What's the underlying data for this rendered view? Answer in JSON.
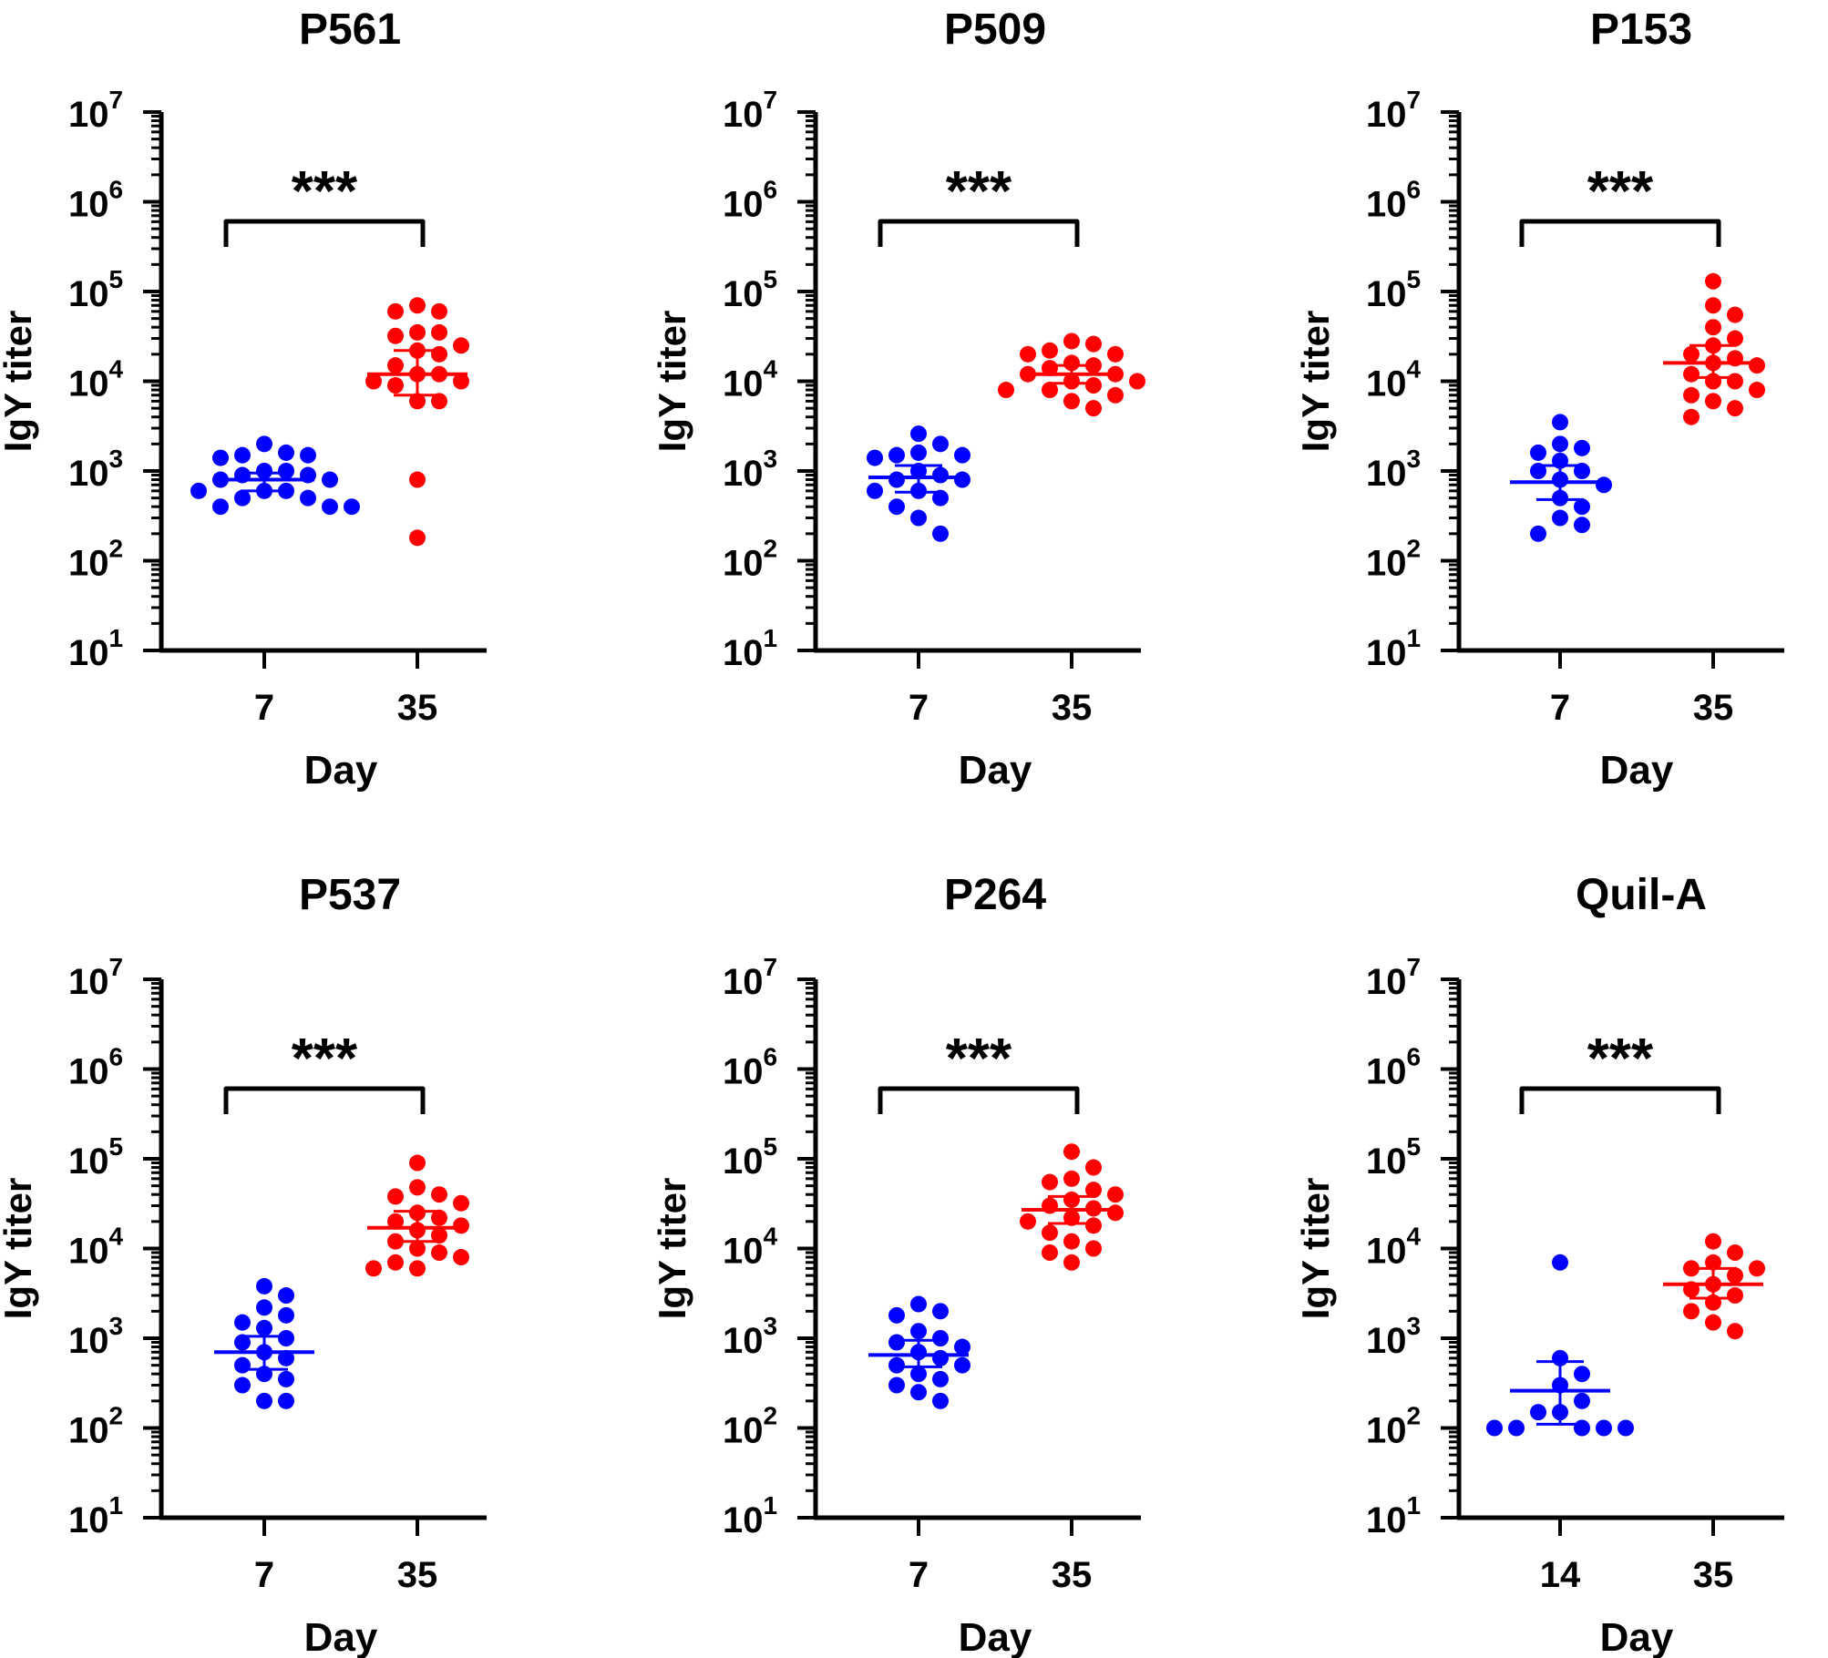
{
  "chart_data": [
    {
      "type": "scatter",
      "title": "P561",
      "xlabel": "Day",
      "ylabel": "IgY titer",
      "yscale": "log",
      "ylim": [
        10,
        10000000
      ],
      "yticks": [
        "10",
        "10",
        "10",
        "10",
        "10",
        "10",
        "10"
      ],
      "ytick_exponents": [
        "1",
        "2",
        "3",
        "4",
        "5",
        "6",
        "7"
      ],
      "categories": [
        "7",
        "35"
      ],
      "significance": "***",
      "series": [
        {
          "name": "7",
          "color": "#0000ff",
          "values": [
            2000,
            1600,
            1500,
            1500,
            1400,
            1000,
            1000,
            900,
            900,
            800,
            800,
            600,
            600,
            600,
            500,
            500,
            400,
            400,
            400
          ],
          "center": 800,
          "err_low": 600,
          "err_high": 950
        },
        {
          "name": "35",
          "color": "#ff0000",
          "values": [
            70000,
            60000,
            60000,
            35000,
            35000,
            32000,
            25000,
            22000,
            20000,
            15000,
            12000,
            12000,
            10000,
            10000,
            9000,
            6000,
            6000,
            800,
            180
          ],
          "center": 12000,
          "err_low": 7000,
          "err_high": 22000
        }
      ]
    },
    {
      "type": "scatter",
      "title": "P509",
      "xlabel": "Day",
      "ylabel": "IgY titer",
      "yscale": "log",
      "ylim": [
        10,
        10000000
      ],
      "yticks": [
        "10",
        "10",
        "10",
        "10",
        "10",
        "10",
        "10"
      ],
      "ytick_exponents": [
        "1",
        "2",
        "3",
        "4",
        "5",
        "6",
        "7"
      ],
      "categories": [
        "7",
        "35"
      ],
      "significance": "***",
      "series": [
        {
          "name": "7",
          "color": "#0000ff",
          "values": [
            2600,
            2000,
            1600,
            1500,
            1500,
            1400,
            1000,
            900,
            800,
            800,
            600,
            600,
            500,
            400,
            300,
            200
          ],
          "center": 850,
          "err_low": 580,
          "err_high": 1150
        },
        {
          "name": "35",
          "color": "#ff0000",
          "values": [
            28000,
            26000,
            22000,
            20000,
            20000,
            16000,
            15000,
            14000,
            12000,
            12000,
            10000,
            10000,
            9000,
            8000,
            8000,
            7000,
            6000,
            5000
          ],
          "center": 12000,
          "err_low": 9500,
          "err_high": 15000
        }
      ]
    },
    {
      "type": "scatter",
      "title": "P153",
      "xlabel": "Day",
      "ylabel": "IgY titer",
      "yscale": "log",
      "ylim": [
        10,
        10000000
      ],
      "yticks": [
        "10",
        "10",
        "10",
        "10",
        "10",
        "10",
        "10"
      ],
      "ytick_exponents": [
        "1",
        "2",
        "3",
        "4",
        "5",
        "6",
        "7"
      ],
      "categories": [
        "7",
        "35"
      ],
      "significance": "***",
      "series": [
        {
          "name": "7",
          "color": "#0000ff",
          "values": [
            3500,
            2000,
            1800,
            1600,
            1300,
            1000,
            1000,
            800,
            700,
            500,
            400,
            300,
            250,
            200
          ],
          "center": 750,
          "err_low": 480,
          "err_high": 1150
        },
        {
          "name": "35",
          "color": "#ff0000",
          "values": [
            130000,
            70000,
            55000,
            40000,
            30000,
            25000,
            20000,
            18000,
            16000,
            15000,
            12000,
            10000,
            10000,
            8000,
            7000,
            6000,
            5000,
            4000
          ],
          "center": 16000,
          "err_low": 11000,
          "err_high": 25000
        }
      ]
    },
    {
      "type": "scatter",
      "title": "P537",
      "xlabel": "Day",
      "ylabel": "IgY titer",
      "yscale": "log",
      "ylim": [
        10,
        10000000
      ],
      "yticks": [
        "10",
        "10",
        "10",
        "10",
        "10",
        "10",
        "10"
      ],
      "ytick_exponents": [
        "1",
        "2",
        "3",
        "4",
        "5",
        "6",
        "7"
      ],
      "categories": [
        "7",
        "35"
      ],
      "significance": "***",
      "series": [
        {
          "name": "7",
          "color": "#0000ff",
          "values": [
            3800,
            3000,
            2200,
            1800,
            1500,
            1300,
            1000,
            900,
            700,
            600,
            500,
            400,
            350,
            300,
            200,
            200
          ],
          "center": 700,
          "err_low": 450,
          "err_high": 1050
        },
        {
          "name": "35",
          "color": "#ff0000",
          "values": [
            90000,
            48000,
            40000,
            38000,
            32000,
            25000,
            22000,
            20000,
            18000,
            16000,
            14000,
            12000,
            10000,
            9000,
            8000,
            7000,
            6000,
            6000
          ],
          "center": 17000,
          "err_low": 12000,
          "err_high": 26000
        }
      ]
    },
    {
      "type": "scatter",
      "title": "P264",
      "xlabel": "Day",
      "ylabel": "IgY titer",
      "yscale": "log",
      "ylim": [
        10,
        10000000
      ],
      "yticks": [
        "10",
        "10",
        "10",
        "10",
        "10",
        "10",
        "10"
      ],
      "ytick_exponents": [
        "1",
        "2",
        "3",
        "4",
        "5",
        "6",
        "7"
      ],
      "categories": [
        "7",
        "35"
      ],
      "significance": "***",
      "series": [
        {
          "name": "7",
          "color": "#0000ff",
          "values": [
            2400,
            2000,
            1800,
            1200,
            1000,
            900,
            800,
            700,
            600,
            500,
            500,
            400,
            350,
            300,
            250,
            200
          ],
          "center": 650,
          "err_low": 480,
          "err_high": 950
        },
        {
          "name": "35",
          "color": "#ff0000",
          "values": [
            120000,
            80000,
            60000,
            55000,
            45000,
            40000,
            35000,
            30000,
            28000,
            25000,
            22000,
            20000,
            18000,
            15000,
            12000,
            10000,
            9000,
            7000
          ],
          "center": 27000,
          "err_low": 19000,
          "err_high": 38000
        }
      ]
    },
    {
      "type": "scatter",
      "title": "Quil-A",
      "xlabel": "Day",
      "ylabel": "IgY titer",
      "yscale": "log",
      "ylim": [
        10,
        10000000
      ],
      "yticks": [
        "10",
        "10",
        "10",
        "10",
        "10",
        "10",
        "10"
      ],
      "ytick_exponents": [
        "1",
        "2",
        "3",
        "4",
        "5",
        "6",
        "7"
      ],
      "categories": [
        "14",
        "35"
      ],
      "significance": "***",
      "series": [
        {
          "name": "14",
          "color": "#0000ff",
          "values": [
            7000,
            600,
            400,
            300,
            200,
            150,
            150,
            100,
            100,
            100,
            100,
            100
          ],
          "center": 260,
          "err_low": 110,
          "err_high": 550
        },
        {
          "name": "35",
          "color": "#ff0000",
          "values": [
            12000,
            9000,
            7000,
            6000,
            6000,
            5000,
            4000,
            3500,
            3000,
            2500,
            2000,
            1500,
            1200
          ],
          "center": 4000,
          "err_low": 2800,
          "err_high": 6000
        }
      ]
    }
  ]
}
